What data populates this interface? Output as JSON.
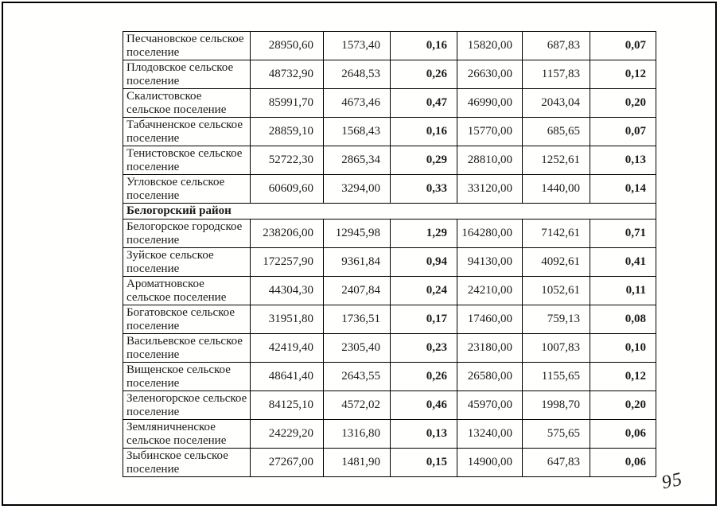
{
  "page": {
    "page_number": "95"
  },
  "table": {
    "bold_value_columns": [
      2,
      5
    ],
    "rows": [
      {
        "type": "data",
        "name": "Песчановское сельское поселение",
        "values": [
          "28950,60",
          "1573,40",
          "0,16",
          "15820,00",
          "687,83",
          "0,07"
        ]
      },
      {
        "type": "data",
        "name": "Плодовское сельское поселение",
        "values": [
          "48732,90",
          "2648,53",
          "0,26",
          "26630,00",
          "1157,83",
          "0,12"
        ]
      },
      {
        "type": "data",
        "name": "Скалистовское сельское поселение",
        "values": [
          "85991,70",
          "4673,46",
          "0,47",
          "46990,00",
          "2043,04",
          "0,20"
        ]
      },
      {
        "type": "data",
        "name": "Табачненское сельское поселение",
        "values": [
          "28859,10",
          "1568,43",
          "0,16",
          "15770,00",
          "685,65",
          "0,07"
        ]
      },
      {
        "type": "data",
        "name": "Тенистовское сельское поселение",
        "values": [
          "52722,30",
          "2865,34",
          "0,29",
          "28810,00",
          "1252,61",
          "0,13"
        ]
      },
      {
        "type": "data",
        "name": "Угловское сельское поселение",
        "values": [
          "60609,60",
          "3294,00",
          "0,33",
          "33120,00",
          "1440,00",
          "0,14"
        ]
      },
      {
        "type": "section",
        "name": "Белогорский район"
      },
      {
        "type": "data",
        "name": "Белогорское городское поселение",
        "values": [
          "238206,00",
          "12945,98",
          "1,29",
          "164280,00",
          "7142,61",
          "0,71"
        ]
      },
      {
        "type": "data",
        "name": "Зуйское сельское поселение",
        "values": [
          "172257,90",
          "9361,84",
          "0,94",
          "94130,00",
          "4092,61",
          "0,41"
        ]
      },
      {
        "type": "data",
        "name": "Ароматновское сельское поселение",
        "values": [
          "44304,30",
          "2407,84",
          "0,24",
          "24210,00",
          "1052,61",
          "0,11"
        ]
      },
      {
        "type": "data",
        "name": "Богатовское сельское поселение",
        "values": [
          "31951,80",
          "1736,51",
          "0,17",
          "17460,00",
          "759,13",
          "0,08"
        ]
      },
      {
        "type": "data",
        "name": "Васильевское сельское поселение",
        "values": [
          "42419,40",
          "2305,40",
          "0,23",
          "23180,00",
          "1007,83",
          "0,10"
        ]
      },
      {
        "type": "data",
        "name": "Вищенское сельское поселение",
        "values": [
          "48641,40",
          "2643,55",
          "0,26",
          "26580,00",
          "1155,65",
          "0,12"
        ]
      },
      {
        "type": "data",
        "name": "Зеленогорское сельское поселение",
        "values": [
          "84125,10",
          "4572,02",
          "0,46",
          "45970,00",
          "1998,70",
          "0,20"
        ]
      },
      {
        "type": "data",
        "name": "Земляничненское сельское поселение",
        "values": [
          "24229,20",
          "1316,80",
          "0,13",
          "13240,00",
          "575,65",
          "0,06"
        ]
      },
      {
        "type": "data",
        "name": "Зыбинское сельское поселение",
        "values": [
          "27267,00",
          "1481,90",
          "0,15",
          "14900,00",
          "647,83",
          "0,06"
        ]
      }
    ]
  }
}
